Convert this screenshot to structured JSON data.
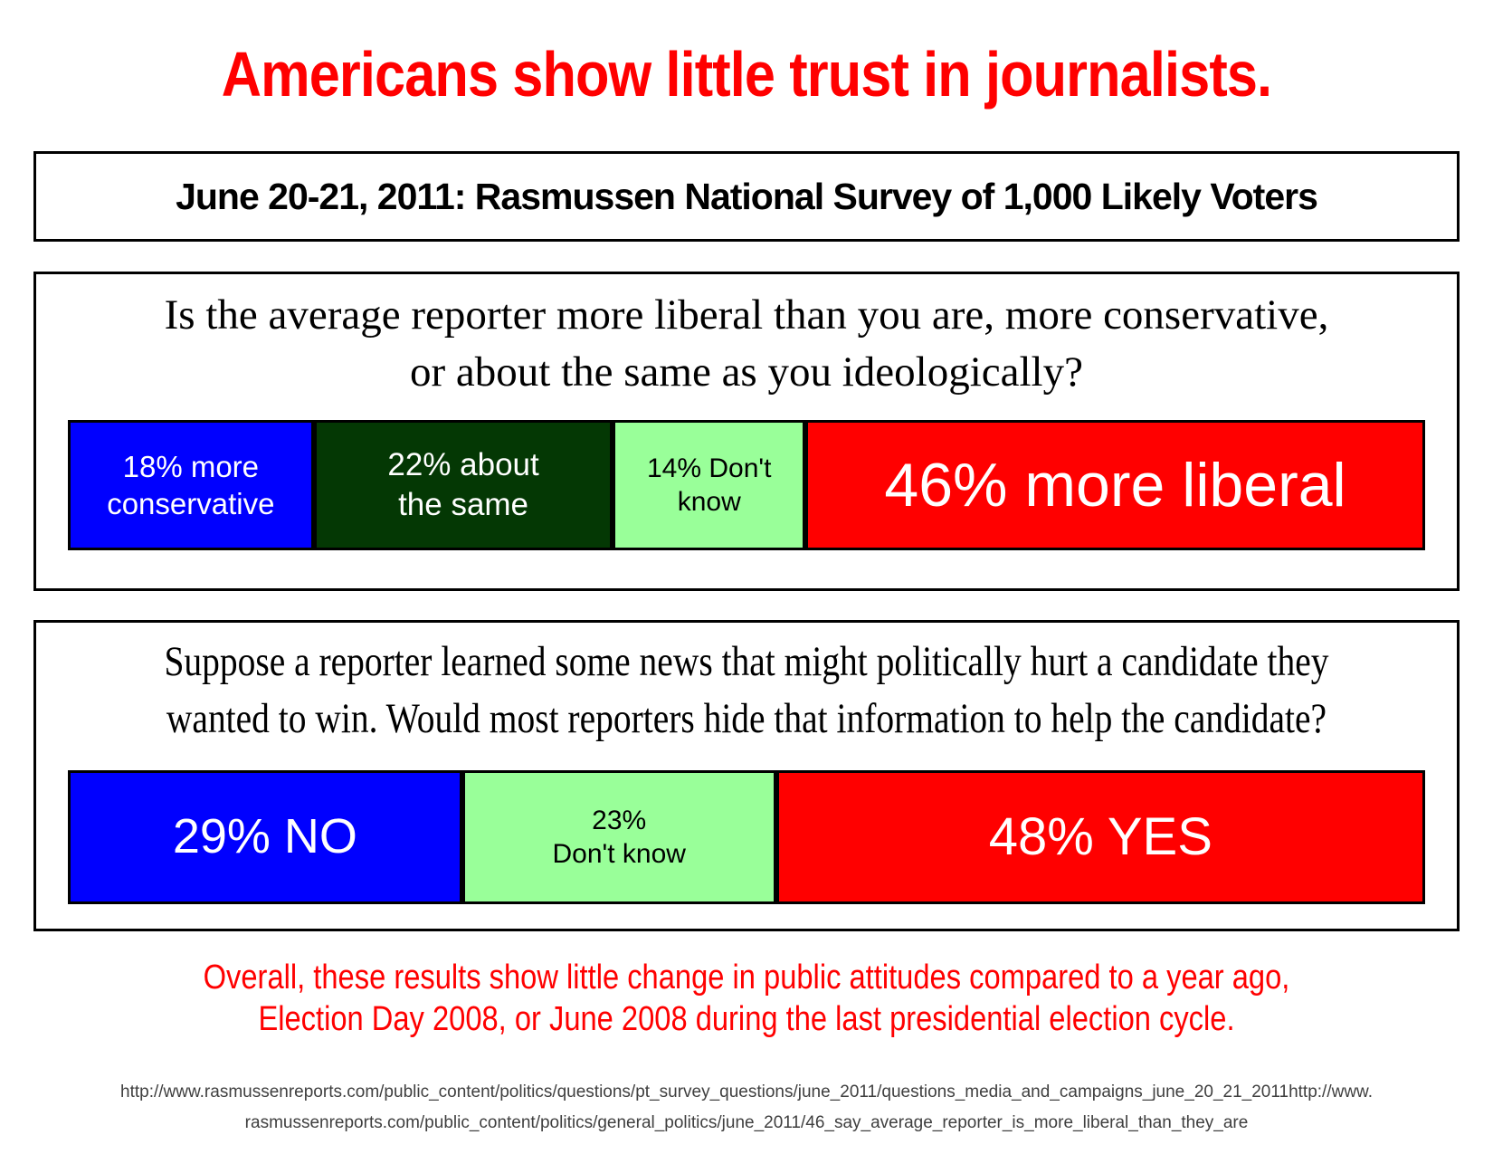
{
  "title": "Americans show little trust in journalists.",
  "subtitle": "June 20-21, 2011: Rasmussen National Survey of 1,000 Likely Voters",
  "colors": {
    "accent_red": "#FF0000",
    "bar_blue": "#0000FF",
    "bar_dark_green": "#043804",
    "bar_light_green": "#99FF99",
    "bar_red": "#FF0000",
    "source_gray": "#3F3F3F"
  },
  "questions": [
    {
      "text": "Is the average reporter more liberal than you are, more conservative,\nor about the same as you ideologically?",
      "segments": [
        {
          "label": "18% more\nconservative",
          "value": 18,
          "color": "#0000FF",
          "text_color": "#FFFFFF"
        },
        {
          "label": "22% about\nthe same",
          "value": 22,
          "color": "#043804",
          "text_color": "#FFFFFF"
        },
        {
          "label": "14% Don't\nknow",
          "value": 14,
          "color": "#99FF99",
          "text_color": "#000000"
        },
        {
          "label": "46% more liberal",
          "value": 46,
          "color": "#FF0000",
          "text_color": "#FFFFFF"
        }
      ]
    },
    {
      "text": "Suppose a reporter learned some news that might politically hurt a candidate they\nwanted to win. Would most reporters hide that information to help the candidate?",
      "segments": [
        {
          "label": "29% NO",
          "value": 29,
          "color": "#0000FF",
          "text_color": "#FFFFFF"
        },
        {
          "label": "23%\nDon't know",
          "value": 23,
          "color": "#99FF99",
          "text_color": "#000000"
        },
        {
          "label": "48% YES",
          "value": 48,
          "color": "#FF0000",
          "text_color": "#FFFFFF"
        }
      ]
    }
  ],
  "conclusion": "Overall, these results show little change in public attitudes compared to a year ago,\nElection Day 2008, or June 2008 during the last presidential election cycle.",
  "source": "http://www.rasmussenreports.com/public_content/politics/questions/pt_survey_questions/june_2011/questions_media_and_campaigns_june_20_21_2011http://www.\nrasmussenreports.com/public_content/politics/general_politics/june_2011/46_say_average_reporter_is_more_liberal_than_they_are",
  "chart_data": [
    {
      "type": "bar",
      "subtype": "horizontal_stacked",
      "title": "Is the average reporter more liberal than you are, more conservative, or about the same as you ideologically?",
      "categories": [
        "more conservative",
        "about the same",
        "Don't know",
        "more liberal"
      ],
      "values": [
        18,
        22,
        14,
        46
      ],
      "unit": "percent",
      "colors": [
        "#0000FF",
        "#043804",
        "#99FF99",
        "#FF0000"
      ],
      "data_labels": [
        "18% more conservative",
        "22% about the same",
        "14% Don't know",
        "46% more liberal"
      ],
      "xlim": [
        0,
        100
      ],
      "legend": false,
      "grid": false
    },
    {
      "type": "bar",
      "subtype": "horizontal_stacked",
      "title": "Suppose a reporter learned some news that might politically hurt a candidate they wanted to win. Would most reporters hide that information to help the candidate?",
      "categories": [
        "NO",
        "Don't know",
        "YES"
      ],
      "values": [
        29,
        23,
        48
      ],
      "unit": "percent",
      "colors": [
        "#0000FF",
        "#99FF99",
        "#FF0000"
      ],
      "data_labels": [
        "29% NO",
        "23% Don't know",
        "48% YES"
      ],
      "xlim": [
        0,
        100
      ],
      "legend": false,
      "grid": false
    }
  ]
}
